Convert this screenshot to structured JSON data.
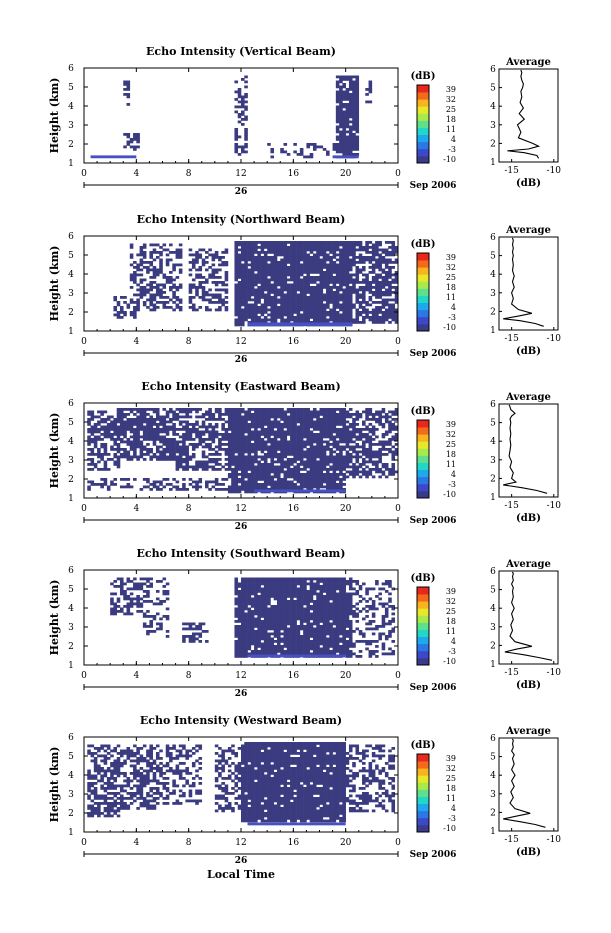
{
  "chart_data": {
    "type": "heatmap",
    "figure": {
      "xlabel": "Local Time",
      "date_label": "26",
      "month_label": "Sep 2006"
    },
    "x_ticks": [
      "0",
      "4",
      "8",
      "12",
      "16",
      "20",
      "0"
    ],
    "xlim_hours": [
      0,
      24
    ],
    "y_ticks": [
      "1",
      "2",
      "3",
      "4",
      "5",
      "6"
    ],
    "ylim_km": [
      1,
      6
    ],
    "ylabel": "Height (km)",
    "colorbar": {
      "unit": "(dB)",
      "ticks": [
        "39",
        "32",
        "25",
        "18",
        "11",
        "4",
        "-3",
        "-10"
      ],
      "range": [
        -10,
        39
      ],
      "colors": [
        "#3a3a8a",
        "#3c48c8",
        "#2a78e6",
        "#1fa8ec",
        "#22d6c8",
        "#5ee08c",
        "#a8ea4c",
        "#e8e82a",
        "#f8b41e",
        "#f46a1c",
        "#e8281c"
      ]
    },
    "dominant_color": "#3b3b80",
    "low_layer_color": "#4650c0",
    "panels": [
      {
        "title": "Echo Intensity (Vertical Beam)",
        "avg_title": "Average",
        "avg_xlabel": "(dB)",
        "avg_xticks": [
          "-15",
          "-10"
        ],
        "avg_x_dB": [
          -11.8,
          -12.0,
          -13.5,
          -15.5,
          -13.0,
          -11.8,
          -12.5,
          -14.2,
          -13.9,
          -14.3,
          -13.5,
          -14.1,
          -13.6,
          -14.0,
          -13.8,
          -13.9,
          -13.7,
          -13.6,
          -13.8,
          -13.9,
          -13.8,
          -13.9
        ],
        "avg_h_km": [
          1.2,
          1.35,
          1.5,
          1.6,
          1.7,
          1.85,
          2.0,
          2.3,
          2.6,
          3.0,
          3.3,
          3.6,
          3.9,
          4.2,
          4.5,
          4.8,
          5.0,
          5.2,
          5.4,
          5.6,
          5.8,
          5.95
        ],
        "echo_regions": [
          {
            "t": [
              3.0,
              3.5
            ],
            "h": [
              4.0,
              5.5
            ],
            "density": 0.5
          },
          {
            "t": [
              3.0,
              4.2
            ],
            "h": [
              1.7,
              2.6
            ],
            "density": 0.6
          },
          {
            "t": [
              11.4,
              12.6
            ],
            "h": [
              1.4,
              5.6
            ],
            "density": 0.45
          },
          {
            "t": [
              14.0,
              20.0
            ],
            "h": [
              1.2,
              2.0
            ],
            "density": 0.3
          },
          {
            "t": [
              19.2,
              21.0
            ],
            "h": [
              1.2,
              5.6
            ],
            "density": 0.85
          },
          {
            "t": [
              21.5,
              22.0
            ],
            "h": [
              4.0,
              5.4
            ],
            "density": 0.5
          }
        ],
        "low_layer": [
          {
            "t": [
              0.5,
              4.0
            ],
            "h": [
              1.25,
              1.4
            ]
          },
          {
            "t": [
              19.0,
              21.0
            ],
            "h": [
              1.25,
              1.4
            ]
          }
        ]
      },
      {
        "title": "Echo Intensity (Northward Beam)",
        "avg_title": "Average",
        "avg_xlabel": "(dB)",
        "avg_xticks": [
          "-15",
          "-10"
        ],
        "avg_x_dB": [
          -11.2,
          -12.2,
          -14.0,
          -16.0,
          -14.2,
          -12.6,
          -14.2,
          -15.0,
          -14.8,
          -15.0,
          -14.7,
          -14.9,
          -14.7,
          -14.9,
          -14.8,
          -14.9,
          -14.8,
          -14.9,
          -14.8,
          -14.9,
          -14.8,
          -14.9
        ],
        "avg_h_km": [
          1.2,
          1.35,
          1.5,
          1.6,
          1.75,
          1.9,
          2.1,
          2.4,
          2.7,
          3.0,
          3.3,
          3.6,
          3.9,
          4.2,
          4.5,
          4.8,
          5.0,
          5.2,
          5.4,
          5.6,
          5.8,
          5.95
        ],
        "echo_regions": [
          {
            "t": [
              2.2,
              4.0
            ],
            "h": [
              1.6,
              2.8
            ],
            "density": 0.55
          },
          {
            "t": [
              3.5,
              7.5
            ],
            "h": [
              2.0,
              5.6
            ],
            "density": 0.5
          },
          {
            "t": [
              8.0,
              11.0
            ],
            "h": [
              2.0,
              5.4
            ],
            "density": 0.45
          },
          {
            "t": [
              11.5,
              16.5
            ],
            "h": [
              1.2,
              5.7
            ],
            "density": 0.9
          },
          {
            "t": [
              16.5,
              20.5
            ],
            "h": [
              1.2,
              5.7
            ],
            "density": 0.95
          },
          {
            "t": [
              20.5,
              24.0
            ],
            "h": [
              1.4,
              5.7
            ],
            "density": 0.7
          }
        ],
        "low_layer": [
          {
            "t": [
              12.5,
              20.5
            ],
            "h": [
              1.25,
              1.45
            ]
          }
        ]
      },
      {
        "title": "Echo Intensity (Eastward Beam)",
        "avg_title": "Average",
        "avg_xlabel": "(dB)",
        "avg_xticks": [
          "-15",
          "-10"
        ],
        "avg_x_dB": [
          -10.8,
          -12.0,
          -13.8,
          -16.0,
          -14.5,
          -15.0,
          -14.8,
          -15.2,
          -15.0,
          -15.3,
          -15.2,
          -15.1,
          -15.2,
          -15.1,
          -15.2,
          -15.1,
          -15.2,
          -15.0,
          -14.6,
          -15.1,
          -15.2,
          -15.3
        ],
        "avg_h_km": [
          1.2,
          1.35,
          1.5,
          1.65,
          1.8,
          2.0,
          2.3,
          2.6,
          2.9,
          3.2,
          3.5,
          3.8,
          4.1,
          4.4,
          4.7,
          5.0,
          5.2,
          5.35,
          5.5,
          5.7,
          5.85,
          5.95
        ],
        "echo_regions": [
          {
            "t": [
              0.2,
              2.8
            ],
            "h": [
              2.5,
              5.6
            ],
            "density": 0.55
          },
          {
            "t": [
              2.5,
              7.0
            ],
            "h": [
              3.0,
              5.7
            ],
            "density": 0.75
          },
          {
            "t": [
              7.0,
              11.0
            ],
            "h": [
              2.5,
              5.7
            ],
            "density": 0.65
          },
          {
            "t": [
              11.0,
              20.0
            ],
            "h": [
              1.3,
              5.7
            ],
            "density": 0.9
          },
          {
            "t": [
              20.0,
              24.0
            ],
            "h": [
              2.0,
              5.7
            ],
            "density": 0.6
          },
          {
            "t": [
              0.2,
              11.0
            ],
            "h": [
              1.4,
              2.0
            ],
            "density": 0.35
          }
        ],
        "low_layer": [
          {
            "t": [
              13.0,
              20.0
            ],
            "h": [
              1.3,
              1.45
            ]
          }
        ]
      },
      {
        "title": "Echo Intensity (Southward Beam)",
        "avg_title": "Average",
        "avg_xlabel": "(dB)",
        "avg_xticks": [
          "-15",
          "-10"
        ],
        "avg_x_dB": [
          -10.2,
          -11.8,
          -13.6,
          -15.8,
          -14.4,
          -12.6,
          -14.6,
          -15.2,
          -14.9,
          -15.1,
          -14.8,
          -15.0,
          -14.7,
          -15.0,
          -14.8,
          -14.9,
          -14.8,
          -15.0,
          -14.8,
          -14.9,
          -14.8,
          -14.9
        ],
        "avg_h_km": [
          1.2,
          1.35,
          1.5,
          1.65,
          1.8,
          1.95,
          2.2,
          2.5,
          2.8,
          3.1,
          3.4,
          3.7,
          4.0,
          4.3,
          4.6,
          4.9,
          5.1,
          5.3,
          5.5,
          5.7,
          5.85,
          5.95
        ],
        "echo_regions": [
          {
            "t": [
              2.0,
              4.5
            ],
            "h": [
              3.6,
              5.6
            ],
            "density": 0.45
          },
          {
            "t": [
              4.5,
              6.5
            ],
            "h": [
              2.5,
              5.6
            ],
            "density": 0.35
          },
          {
            "t": [
              7.5,
              9.5
            ],
            "h": [
              2.2,
              3.2
            ],
            "density": 0.4
          },
          {
            "t": [
              11.5,
              16.0
            ],
            "h": [
              1.4,
              5.6
            ],
            "density": 0.9
          },
          {
            "t": [
              16.0,
              20.5
            ],
            "h": [
              1.4,
              5.6
            ],
            "density": 0.92
          },
          {
            "t": [
              20.5,
              23.8
            ],
            "h": [
              1.4,
              5.5
            ],
            "density": 0.35
          }
        ],
        "low_layer": [
          {
            "t": [
              12.5,
              20.0
            ],
            "h": [
              1.4,
              1.55
            ]
          }
        ]
      },
      {
        "title": "Echo Intensity (Westward Beam)",
        "avg_title": "Average",
        "avg_xlabel": "(dB)",
        "avg_xticks": [
          "-15",
          "-10"
        ],
        "avg_x_dB": [
          -11.0,
          -12.2,
          -14.0,
          -16.0,
          -14.4,
          -12.8,
          -14.6,
          -15.2,
          -14.8,
          -15.1,
          -14.7,
          -15.0,
          -14.6,
          -15.0,
          -14.7,
          -14.9,
          -14.7,
          -15.0,
          -14.8,
          -14.9,
          -14.8,
          -14.9
        ],
        "avg_h_km": [
          1.2,
          1.35,
          1.5,
          1.65,
          1.8,
          1.95,
          2.2,
          2.5,
          2.8,
          3.1,
          3.4,
          3.7,
          4.0,
          4.3,
          4.6,
          4.9,
          5.1,
          5.3,
          5.5,
          5.7,
          5.85,
          5.95
        ],
        "echo_regions": [
          {
            "t": [
              0.2,
              3.0
            ],
            "h": [
              1.8,
              5.6
            ],
            "density": 0.6
          },
          {
            "t": [
              3.0,
              5.5
            ],
            "h": [
              2.2,
              5.6
            ],
            "density": 0.55
          },
          {
            "t": [
              5.5,
              9.0
            ],
            "h": [
              2.4,
              5.6
            ],
            "density": 0.4
          },
          {
            "t": [
              10.0,
              12.0
            ],
            "h": [
              2.0,
              5.6
            ],
            "density": 0.5
          },
          {
            "t": [
              12.0,
              20.0
            ],
            "h": [
              1.5,
              5.7
            ],
            "density": 0.92
          },
          {
            "t": [
              20.0,
              23.8
            ],
            "h": [
              2.0,
              5.6
            ],
            "density": 0.45
          }
        ],
        "low_layer": [
          {
            "t": [
              12.5,
              20.0
            ],
            "h": [
              1.35,
              1.5
            ]
          }
        ]
      }
    ]
  }
}
